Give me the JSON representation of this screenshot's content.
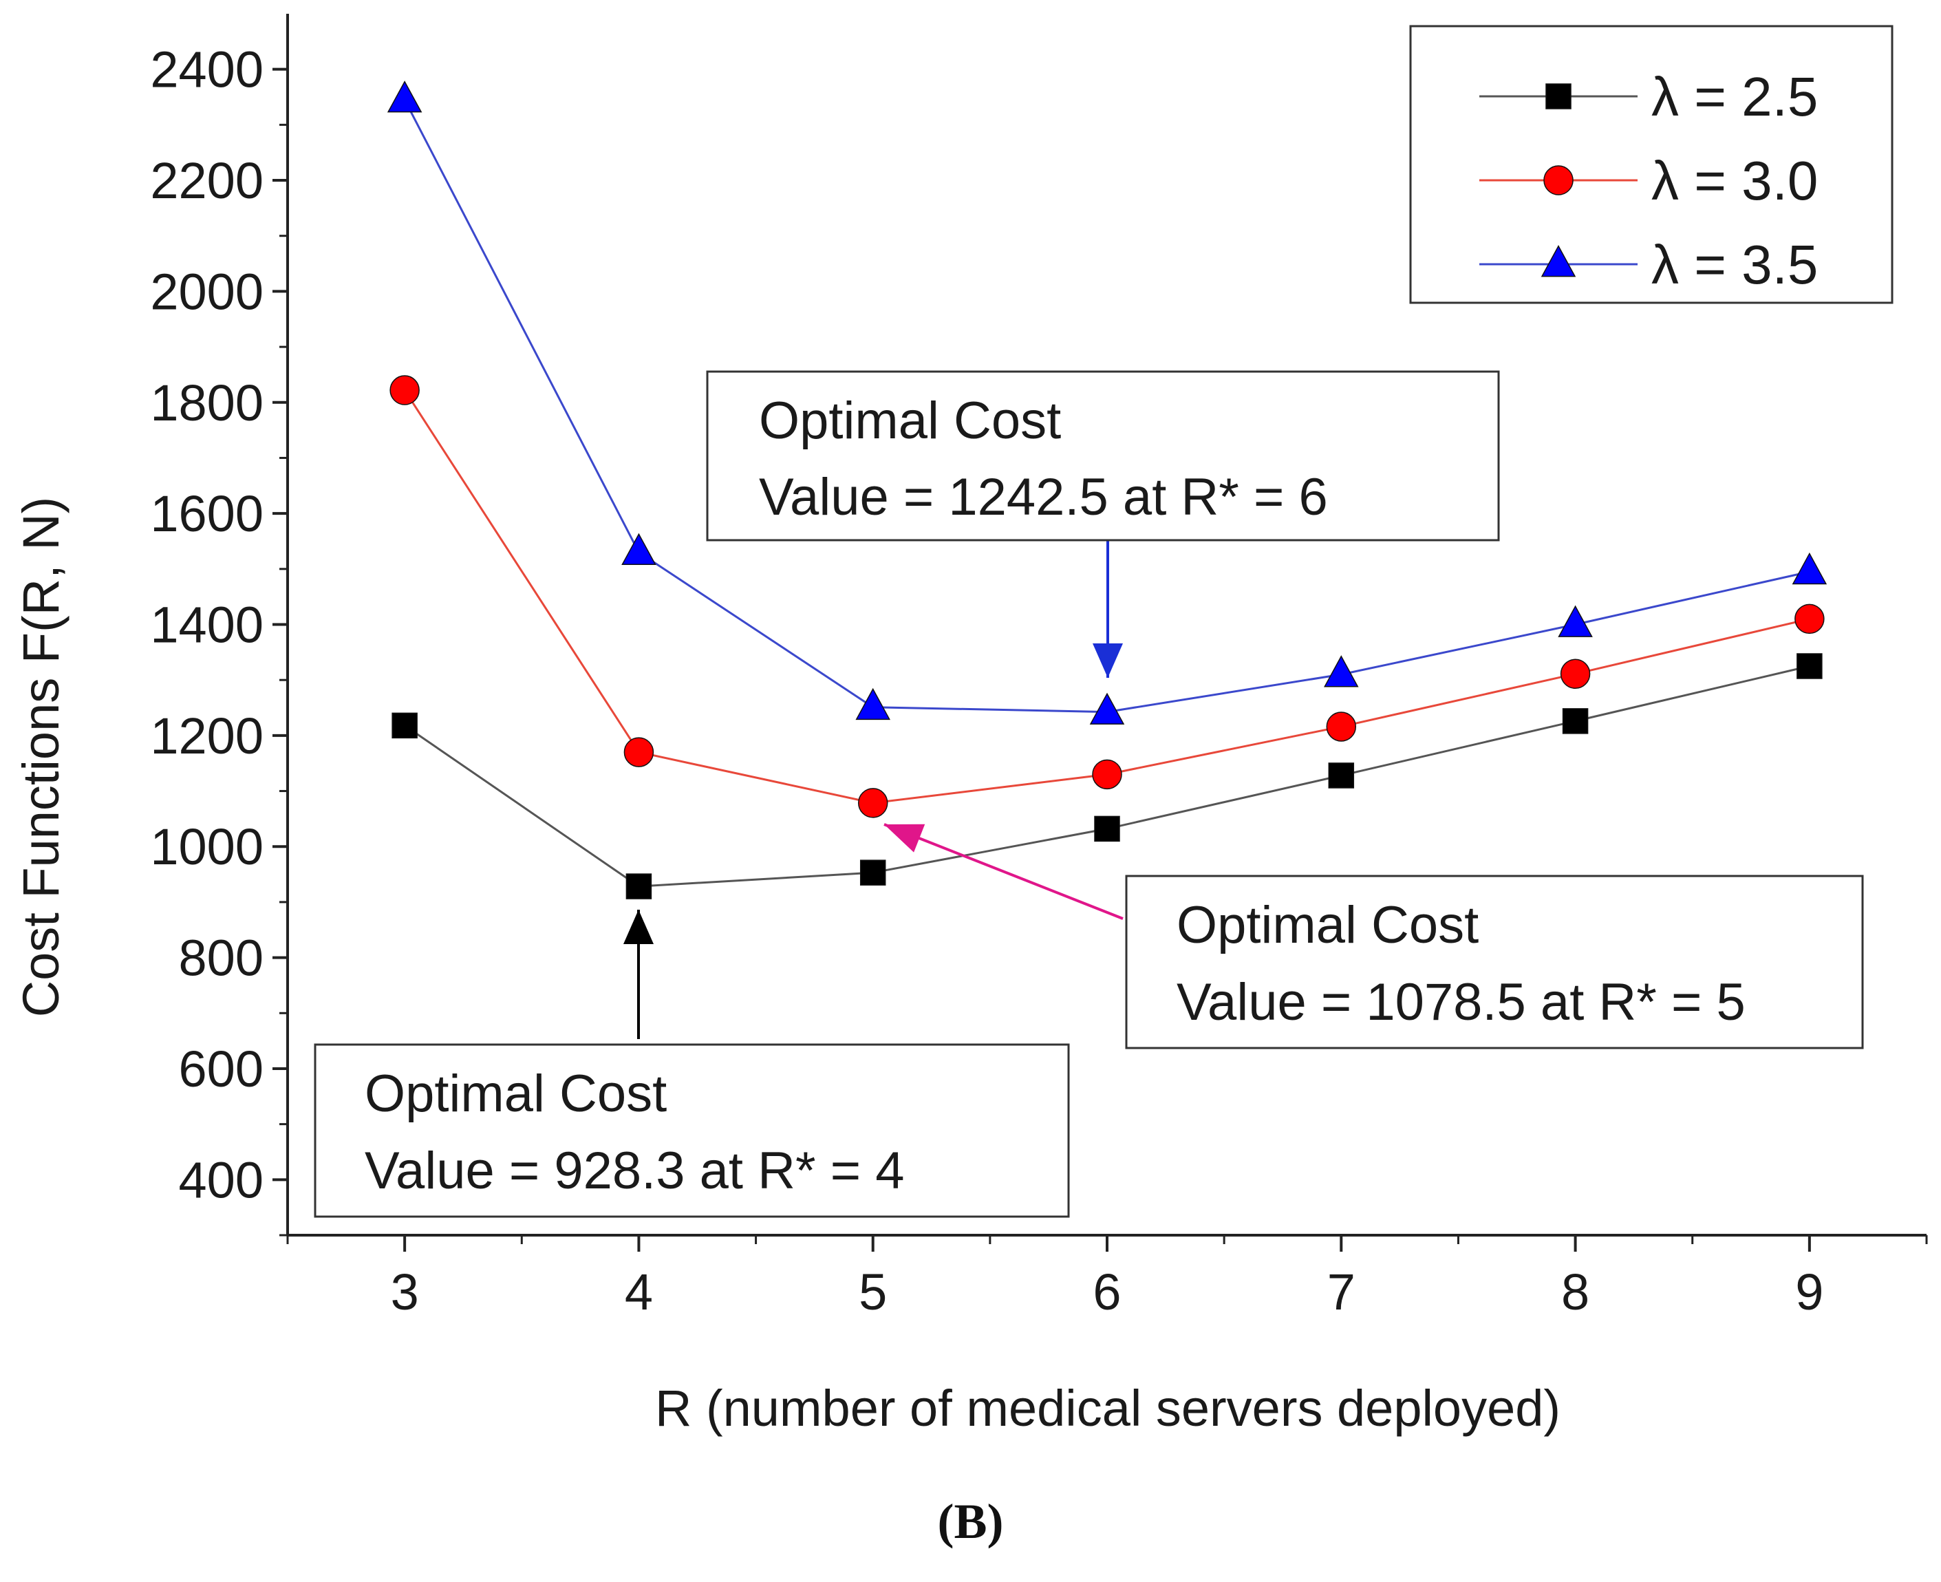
{
  "chart_data": {
    "type": "line",
    "ylabel": "Cost Functions F(R, N)",
    "xlabel": "R (number of medical servers deployed)",
    "x": [
      3,
      4,
      5,
      6,
      7,
      8,
      9
    ],
    "xticks": [
      "3",
      "4",
      "5",
      "6",
      "7",
      "8",
      "9"
    ],
    "xlim": [
      2.5,
      9.5
    ],
    "ylim": [
      300,
      2500
    ],
    "yticks": [
      "400",
      "600",
      "800",
      "1000",
      "1200",
      "1400",
      "1600",
      "1800",
      "2000",
      "2200",
      "2400"
    ],
    "legend_position": "top-right",
    "grid": false,
    "series": [
      {
        "name": "λ = 2.5",
        "marker": "square",
        "color": "#000000",
        "line_color": "#555555",
        "values": [
          1218,
          928.3,
          953,
          1032,
          1128,
          1226,
          1325
        ]
      },
      {
        "name": "λ = 3.0",
        "marker": "circle",
        "color": "#ff0000",
        "line_color": "#e8483a",
        "values": [
          1822,
          1170,
          1078.5,
          1130,
          1216,
          1311,
          1410
        ]
      },
      {
        "name": "λ = 3.5",
        "marker": "triangle",
        "color": "#0000ff",
        "line_color": "#3b48cc",
        "values": [
          2345,
          1530,
          1251,
          1242.5,
          1310,
          1400,
          1495
        ]
      }
    ],
    "annotations": [
      {
        "title": "Optimal Cost",
        "text": "Value = 928.3 at R* = 4",
        "target_x": 4,
        "target_y": 928.3,
        "arrow_color": "#000000"
      },
      {
        "title": "Optimal Cost",
        "text": "Value = 1078.5 at R* = 5",
        "target_x": 5,
        "target_y": 1078.5,
        "arrow_color": "#e0168a"
      },
      {
        "title": "Optimal Cost",
        "text": "Value = 1242.5 at R* = 6",
        "target_x": 6,
        "target_y": 1242.5,
        "arrow_color": "#1a2fd6"
      }
    ]
  },
  "panel_label": "(B)"
}
